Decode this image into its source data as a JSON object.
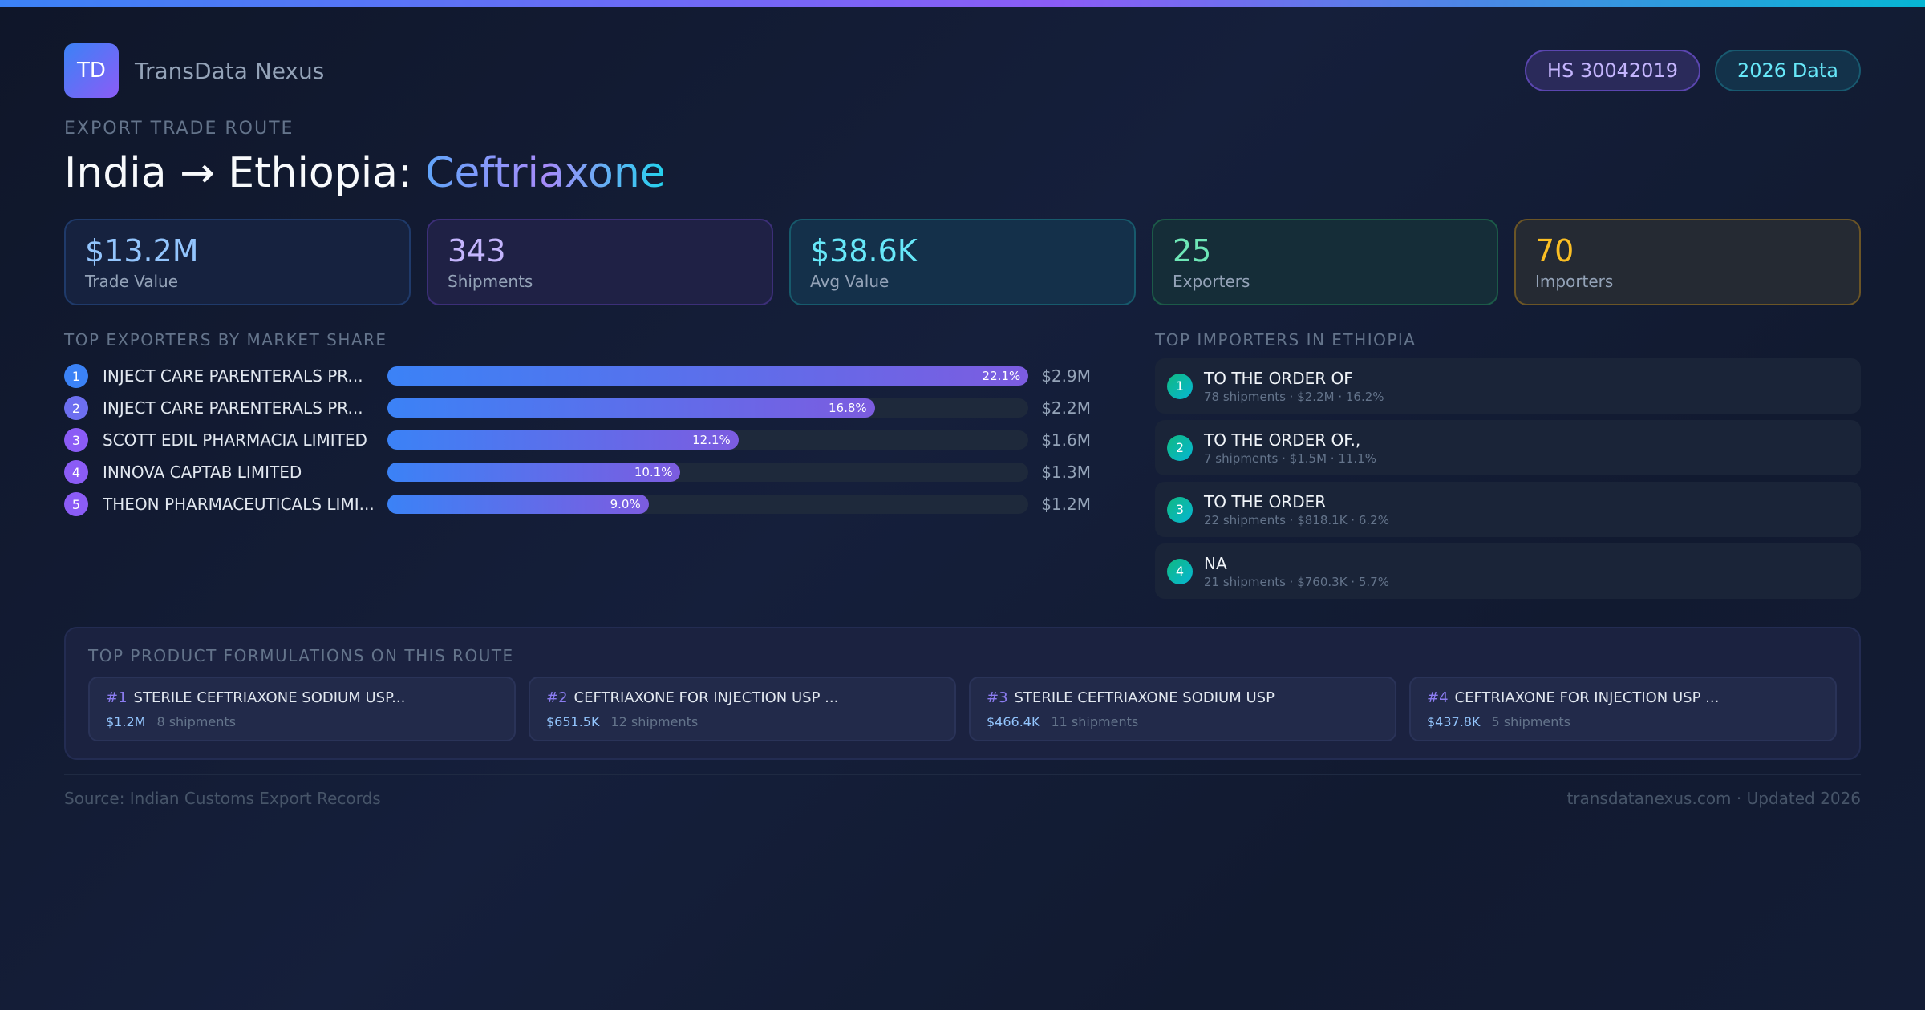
{
  "brand": {
    "logo": "TD",
    "name": "TransData Nexus"
  },
  "badges": {
    "hs": "HS 30042019",
    "year": "2026 Data"
  },
  "eyebrow": "EXPORT TRADE ROUTE",
  "title": {
    "route": "India → Ethiopia:",
    "product": "Ceftriaxone"
  },
  "stats": [
    {
      "value": "$13.2M",
      "label": "Trade Value"
    },
    {
      "value": "343",
      "label": "Shipments"
    },
    {
      "value": "$38.6K",
      "label": "Avg Value"
    },
    {
      "value": "25",
      "label": "Exporters"
    },
    {
      "value": "70",
      "label": "Importers"
    }
  ],
  "exporters": {
    "title": "TOP EXPORTERS BY MARKET SHARE",
    "items": [
      {
        "rank": "1",
        "name": "INJECT CARE PARENTERALS PR...",
        "share": 22.1,
        "share_label": "22.1%",
        "value": "$2.9M",
        "color": "#3b82f6"
      },
      {
        "rank": "2",
        "name": "INJECT CARE PARENTERALS PR...",
        "share": 16.8,
        "share_label": "16.8%",
        "value": "$2.2M",
        "color": "#6d6ff0"
      },
      {
        "rank": "3",
        "name": "SCOTT EDIL PHARMACIA LIMITED",
        "share": 12.1,
        "share_label": "12.1%",
        "value": "$1.6M",
        "color": "#8b5cf6"
      },
      {
        "rank": "4",
        "name": "INNOVA CAPTAB LIMITED",
        "share": 10.1,
        "share_label": "10.1%",
        "value": "$1.3M",
        "color": "#8b5cf6"
      },
      {
        "rank": "5",
        "name": "THEON PHARMACEUTICALS LIMI...",
        "share": 9.0,
        "share_label": "9.0%",
        "value": "$1.2M",
        "color": "#8b5cf6"
      }
    ]
  },
  "importers": {
    "title": "TOP IMPORTERS IN ETHIOPIA",
    "items": [
      {
        "rank": "1",
        "name": "TO THE ORDER OF",
        "meta": "78 shipments · $2.2M · 16.2%"
      },
      {
        "rank": "2",
        "name": "TO THE ORDER OF.,",
        "meta": "7 shipments · $1.5M · 11.1%"
      },
      {
        "rank": "3",
        "name": "TO THE ORDER",
        "meta": "22 shipments · $818.1K · 6.2%"
      },
      {
        "rank": "4",
        "name": "NA",
        "meta": "21 shipments · $760.3K · 5.7%"
      }
    ]
  },
  "formulations": {
    "title": "TOP PRODUCT FORMULATIONS ON THIS ROUTE",
    "items": [
      {
        "rank": "#1",
        "name": "STERILE CEFTRIAXONE SODIUM USP...",
        "value": "$1.2M",
        "shipments": "8 shipments"
      },
      {
        "rank": "#2",
        "name": "CEFTRIAXONE FOR INJECTION USP ...",
        "value": "$651.5K",
        "shipments": "12 shipments"
      },
      {
        "rank": "#3",
        "name": "STERILE CEFTRIAXONE SODIUM USP",
        "value": "$466.4K",
        "shipments": "11 shipments"
      },
      {
        "rank": "#4",
        "name": "CEFTRIAXONE FOR INJECTION USP ...",
        "value": "$437.8K",
        "shipments": "5 shipments"
      }
    ]
  },
  "footer": {
    "source": "Source: Indian Customs Export Records",
    "site": "transdatanexus.com · Updated 2026"
  }
}
